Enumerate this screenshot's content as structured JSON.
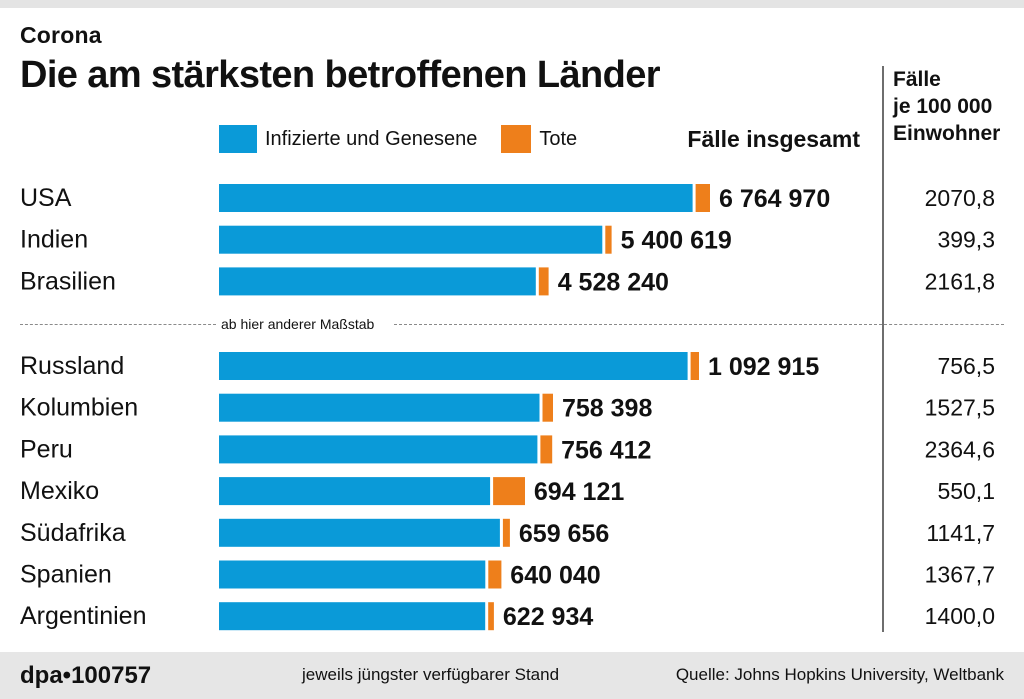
{
  "kicker": "Corona",
  "title": "Die am stärksten betroffenen Länder",
  "legend": {
    "infected": "Infizierte und Genesene",
    "deaths": "Tote"
  },
  "column_total_header": "Fälle insgesamt",
  "column_per_header": [
    "Fälle",
    "je 100 000",
    "Einwohner"
  ],
  "scale_note": "ab hier anderer Maßstab",
  "colors": {
    "infected": "#0a9ad8",
    "deaths": "#ee7f1b"
  },
  "footer": {
    "logo": "dpa•100757",
    "note": "jeweils jüngster verfügbarer Stand",
    "source": "Quelle: Johns Hopkins University, Weltbank"
  },
  "chart_data": {
    "type": "bar",
    "orientation": "horizontal",
    "stacked": true,
    "scale_groups": [
      {
        "categories": [
          "USA",
          "Indien",
          "Brasilien"
        ],
        "series": [
          {
            "name": "Infizierte und Genesene",
            "values": [
              6565970,
              5313619,
              4392240
            ]
          },
          {
            "name": "Tote",
            "values": [
              199000,
              87000,
              136000
            ]
          }
        ],
        "totals": [
          "6 764 970",
          "5 400 619",
          "4 528 240"
        ],
        "per_100000": [
          "2070,8",
          "399,3",
          "2161,8"
        ]
      },
      {
        "categories": [
          "Russland",
          "Kolumbien",
          "Peru",
          "Mexiko",
          "Südafrika",
          "Spanien",
          "Argentinien"
        ],
        "series": [
          {
            "name": "Infizierte und Genesene",
            "values": [
              1073715,
              734398,
              729412,
              621121,
              643656,
              610040,
              609934
            ]
          },
          {
            "name": "Tote",
            "values": [
              19200,
              24000,
              27000,
              73000,
              16000,
              30000,
              13000
            ]
          }
        ],
        "totals": [
          "1 092 915",
          "758 398",
          "756 412",
          "694 121",
          "659 656",
          "640 040",
          "622 934"
        ],
        "per_100000": [
          "756,5",
          "1527,5",
          "2364,6",
          "550,1",
          "1141,7",
          "1367,7",
          "1400,0"
        ]
      }
    ]
  }
}
